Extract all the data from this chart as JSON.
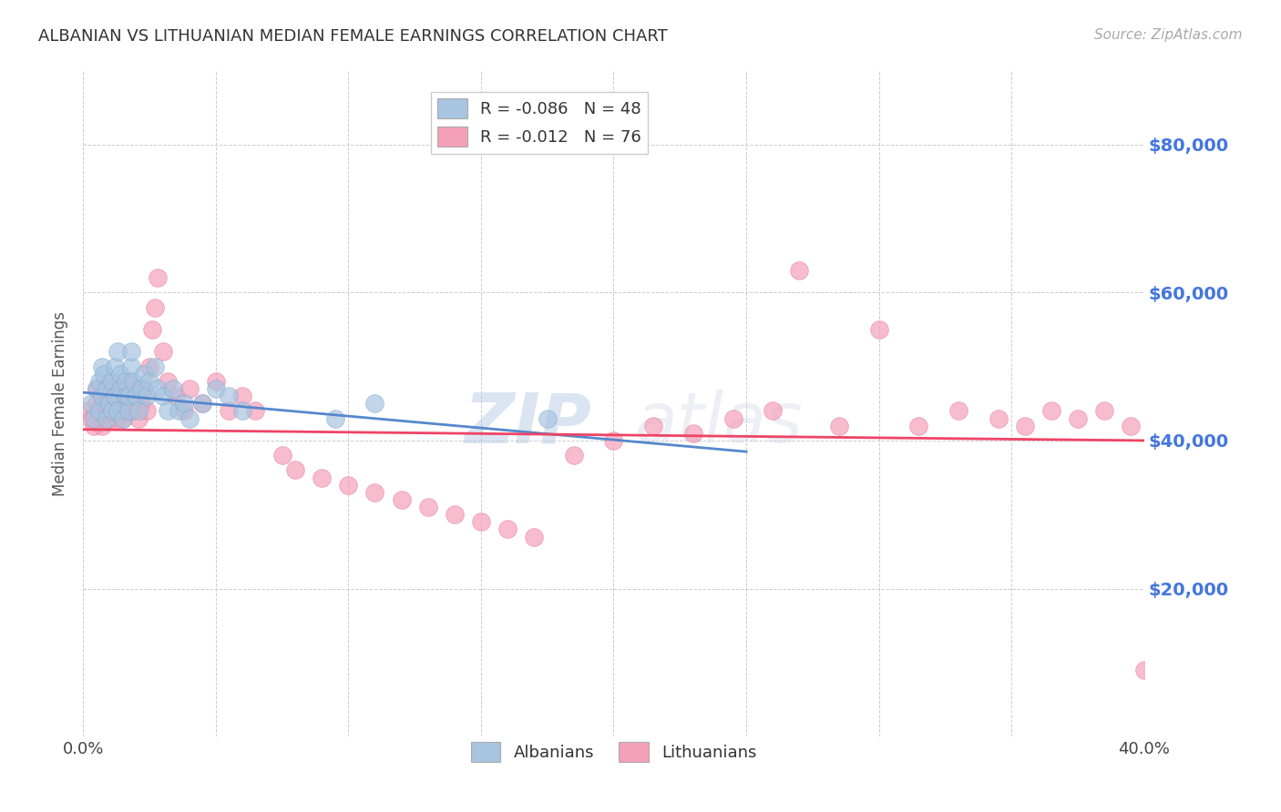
{
  "title": "ALBANIAN VS LITHUANIAN MEDIAN FEMALE EARNINGS CORRELATION CHART",
  "source_text": "Source: ZipAtlas.com",
  "ylabel": "Median Female Earnings",
  "xlim": [
    0.0,
    0.4
  ],
  "ylim": [
    0,
    90000
  ],
  "ytick_positions": [
    20000,
    40000,
    60000,
    80000
  ],
  "ytick_labels": [
    "$20,000",
    "$40,000",
    "$60,000",
    "$80,000"
  ],
  "albanians_R": -0.086,
  "albanians_N": 48,
  "lithuanians_R": -0.012,
  "lithuanians_N": 76,
  "albanians_color": "#a8c4e0",
  "lithuanians_color": "#f4a0b8",
  "albanians_edge_color": "#7aabcf",
  "lithuanians_edge_color": "#e87898",
  "trendline_albanian_color": "#5588cc",
  "trendline_lithuanian_color": "#ee4466",
  "legend_entry1": "R = -0.086   N = 48",
  "legend_entry2": "R = -0.012   N = 76",
  "legend_labels": [
    "Albanians",
    "Lithuanians"
  ],
  "watermark_ZIP": "ZIP",
  "watermark_atlas": "atlas",
  "background_color": "#ffffff",
  "grid_color": "#cccccc",
  "albanians_x": [
    0.003,
    0.004,
    0.005,
    0.006,
    0.006,
    0.007,
    0.007,
    0.008,
    0.009,
    0.009,
    0.01,
    0.011,
    0.011,
    0.012,
    0.012,
    0.013,
    0.013,
    0.014,
    0.014,
    0.015,
    0.016,
    0.016,
    0.017,
    0.017,
    0.018,
    0.018,
    0.019,
    0.02,
    0.021,
    0.022,
    0.023,
    0.024,
    0.025,
    0.027,
    0.028,
    0.03,
    0.032,
    0.034,
    0.036,
    0.038,
    0.04,
    0.045,
    0.05,
    0.055,
    0.06,
    0.095,
    0.11,
    0.175
  ],
  "albanians_y": [
    45000,
    43000,
    47000,
    44000,
    48000,
    50000,
    46000,
    49000,
    43000,
    47000,
    45000,
    44000,
    48000,
    46000,
    50000,
    52000,
    44000,
    47000,
    49000,
    43000,
    46000,
    48000,
    44000,
    46000,
    50000,
    52000,
    48000,
    46000,
    44000,
    47000,
    49000,
    46000,
    48000,
    50000,
    47000,
    46000,
    44000,
    47000,
    44000,
    45000,
    43000,
    45000,
    47000,
    46000,
    44000,
    43000,
    45000,
    43000
  ],
  "lithuanians_x": [
    0.002,
    0.003,
    0.004,
    0.005,
    0.005,
    0.006,
    0.007,
    0.007,
    0.008,
    0.009,
    0.009,
    0.01,
    0.01,
    0.011,
    0.011,
    0.012,
    0.012,
    0.013,
    0.013,
    0.014,
    0.014,
    0.015,
    0.015,
    0.016,
    0.017,
    0.018,
    0.018,
    0.019,
    0.02,
    0.021,
    0.022,
    0.023,
    0.024,
    0.025,
    0.026,
    0.027,
    0.028,
    0.03,
    0.032,
    0.035,
    0.038,
    0.04,
    0.045,
    0.05,
    0.055,
    0.06,
    0.065,
    0.075,
    0.08,
    0.09,
    0.1,
    0.11,
    0.12,
    0.13,
    0.14,
    0.15,
    0.16,
    0.17,
    0.185,
    0.2,
    0.215,
    0.23,
    0.245,
    0.26,
    0.27,
    0.285,
    0.3,
    0.315,
    0.33,
    0.345,
    0.355,
    0.365,
    0.375,
    0.385,
    0.395,
    0.4
  ],
  "lithuanians_y": [
    44000,
    43000,
    42000,
    45000,
    47000,
    44000,
    46000,
    42000,
    45000,
    43000,
    47000,
    44000,
    48000,
    43000,
    46000,
    44000,
    47000,
    43000,
    45000,
    44000,
    47000,
    43000,
    46000,
    44000,
    48000,
    45000,
    47000,
    44000,
    46000,
    43000,
    45000,
    47000,
    44000,
    50000,
    55000,
    58000,
    62000,
    52000,
    48000,
    46000,
    44000,
    47000,
    45000,
    48000,
    44000,
    46000,
    44000,
    38000,
    36000,
    35000,
    34000,
    33000,
    32000,
    31000,
    30000,
    29000,
    28000,
    27000,
    38000,
    40000,
    42000,
    41000,
    43000,
    44000,
    63000,
    42000,
    55000,
    42000,
    44000,
    43000,
    42000,
    44000,
    43000,
    44000,
    42000,
    9000
  ]
}
